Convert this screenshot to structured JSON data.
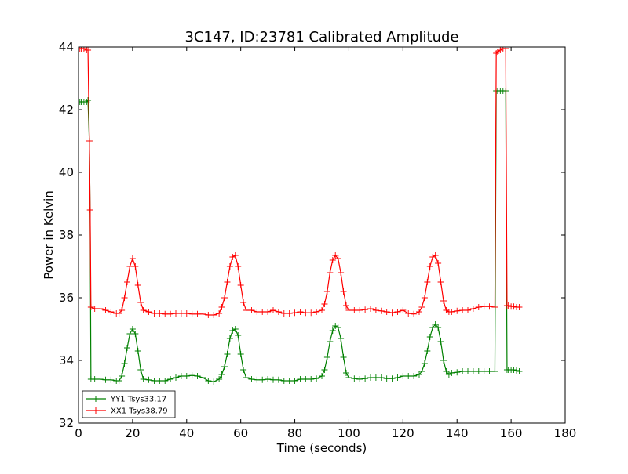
{
  "chart_data": {
    "type": "line",
    "title": "3C147, ID:23781 Calibrated Amplitude",
    "xlabel": "Time (seconds)",
    "ylabel": "Power in Kelvin",
    "xlim": [
      0,
      180
    ],
    "ylim": [
      32,
      44
    ],
    "xticks": [
      0,
      20,
      40,
      60,
      80,
      100,
      120,
      140,
      160,
      180
    ],
    "yticks": [
      32,
      34,
      36,
      38,
      40,
      42,
      44
    ],
    "grid": false,
    "legend_position": "lower-left",
    "marker": "plus",
    "series": [
      {
        "name": "YY1 Tsys33.17",
        "color": "#008000",
        "points": [
          [
            0.5,
            42.25
          ],
          [
            1,
            42.25
          ],
          [
            2,
            42.25
          ],
          [
            3,
            42.25
          ],
          [
            3.5,
            42.3
          ],
          [
            4,
            41.0
          ],
          [
            4.3,
            38.8
          ],
          [
            4.6,
            33.4
          ],
          [
            6,
            33.4
          ],
          [
            8,
            33.4
          ],
          [
            10,
            33.38
          ],
          [
            12,
            33.38
          ],
          [
            14,
            33.35
          ],
          [
            15,
            33.35
          ],
          [
            16,
            33.5
          ],
          [
            17,
            33.9
          ],
          [
            18,
            34.4
          ],
          [
            19,
            34.85
          ],
          [
            20,
            35.0
          ],
          [
            21,
            34.85
          ],
          [
            22,
            34.3
          ],
          [
            23,
            33.7
          ],
          [
            24,
            33.4
          ],
          [
            26,
            33.38
          ],
          [
            28,
            33.35
          ],
          [
            30,
            33.35
          ],
          [
            32,
            33.35
          ],
          [
            34,
            33.4
          ],
          [
            36,
            33.45
          ],
          [
            38,
            33.5
          ],
          [
            40,
            33.5
          ],
          [
            42,
            33.52
          ],
          [
            44,
            33.5
          ],
          [
            46,
            33.45
          ],
          [
            48,
            33.35
          ],
          [
            50,
            33.32
          ],
          [
            52,
            33.4
          ],
          [
            53,
            33.55
          ],
          [
            54,
            33.8
          ],
          [
            55,
            34.2
          ],
          [
            56,
            34.7
          ],
          [
            57,
            34.95
          ],
          [
            58,
            35.0
          ],
          [
            59,
            34.8
          ],
          [
            60,
            34.2
          ],
          [
            61,
            33.7
          ],
          [
            62,
            33.45
          ],
          [
            64,
            33.4
          ],
          [
            66,
            33.38
          ],
          [
            68,
            33.38
          ],
          [
            70,
            33.4
          ],
          [
            72,
            33.38
          ],
          [
            74,
            33.38
          ],
          [
            76,
            33.35
          ],
          [
            78,
            33.35
          ],
          [
            80,
            33.35
          ],
          [
            82,
            33.4
          ],
          [
            84,
            33.4
          ],
          [
            86,
            33.4
          ],
          [
            88,
            33.42
          ],
          [
            90,
            33.5
          ],
          [
            91,
            33.7
          ],
          [
            92,
            34.1
          ],
          [
            93,
            34.6
          ],
          [
            94,
            34.95
          ],
          [
            95,
            35.1
          ],
          [
            96,
            35.05
          ],
          [
            97,
            34.7
          ],
          [
            98,
            34.1
          ],
          [
            99,
            33.6
          ],
          [
            100,
            33.45
          ],
          [
            102,
            33.42
          ],
          [
            104,
            33.4
          ],
          [
            106,
            33.42
          ],
          [
            108,
            33.45
          ],
          [
            110,
            33.45
          ],
          [
            112,
            33.45
          ],
          [
            114,
            33.42
          ],
          [
            116,
            33.42
          ],
          [
            118,
            33.45
          ],
          [
            120,
            33.5
          ],
          [
            122,
            33.5
          ],
          [
            124,
            33.5
          ],
          [
            126,
            33.55
          ],
          [
            127,
            33.65
          ],
          [
            128,
            33.9
          ],
          [
            129,
            34.3
          ],
          [
            130,
            34.75
          ],
          [
            131,
            35.05
          ],
          [
            132,
            35.15
          ],
          [
            133,
            35.05
          ],
          [
            134,
            34.6
          ],
          [
            135,
            34.0
          ],
          [
            136,
            33.65
          ],
          [
            137,
            33.55
          ],
          [
            138,
            33.6
          ],
          [
            140,
            33.62
          ],
          [
            142,
            33.65
          ],
          [
            144,
            33.65
          ],
          [
            146,
            33.65
          ],
          [
            148,
            33.65
          ],
          [
            150,
            33.65
          ],
          [
            152,
            33.65
          ],
          [
            154,
            33.65
          ],
          [
            154.5,
            42.6
          ],
          [
            155,
            42.6
          ],
          [
            156,
            42.6
          ],
          [
            157,
            42.6
          ],
          [
            158,
            42.6
          ],
          [
            158.5,
            33.7
          ],
          [
            159,
            33.7
          ],
          [
            160,
            33.7
          ],
          [
            161,
            33.7
          ],
          [
            162,
            33.68
          ],
          [
            163,
            33.65
          ]
        ]
      },
      {
        "name": "XX1 Tsys38.79",
        "color": "#ff0000",
        "points": [
          [
            0.5,
            43.95
          ],
          [
            1,
            43.95
          ],
          [
            2,
            43.95
          ],
          [
            3,
            43.9
          ],
          [
            3.5,
            43.9
          ],
          [
            4,
            41.0
          ],
          [
            4.3,
            38.8
          ],
          [
            4.6,
            35.7
          ],
          [
            6,
            35.65
          ],
          [
            8,
            35.65
          ],
          [
            10,
            35.6
          ],
          [
            12,
            35.55
          ],
          [
            14,
            35.5
          ],
          [
            15,
            35.5
          ],
          [
            16,
            35.6
          ],
          [
            17,
            36.0
          ],
          [
            18,
            36.5
          ],
          [
            19,
            37.0
          ],
          [
            20,
            37.25
          ],
          [
            21,
            37.0
          ],
          [
            22,
            36.4
          ],
          [
            23,
            35.85
          ],
          [
            24,
            35.6
          ],
          [
            26,
            35.55
          ],
          [
            28,
            35.5
          ],
          [
            30,
            35.5
          ],
          [
            32,
            35.48
          ],
          [
            34,
            35.48
          ],
          [
            36,
            35.5
          ],
          [
            38,
            35.5
          ],
          [
            40,
            35.5
          ],
          [
            42,
            35.48
          ],
          [
            44,
            35.48
          ],
          [
            46,
            35.48
          ],
          [
            48,
            35.45
          ],
          [
            50,
            35.45
          ],
          [
            52,
            35.5
          ],
          [
            53,
            35.7
          ],
          [
            54,
            36.0
          ],
          [
            55,
            36.5
          ],
          [
            56,
            37.0
          ],
          [
            57,
            37.3
          ],
          [
            58,
            37.35
          ],
          [
            59,
            37.0
          ],
          [
            60,
            36.4
          ],
          [
            61,
            35.85
          ],
          [
            62,
            35.6
          ],
          [
            64,
            35.6
          ],
          [
            66,
            35.55
          ],
          [
            68,
            35.55
          ],
          [
            70,
            35.55
          ],
          [
            72,
            35.6
          ],
          [
            74,
            35.55
          ],
          [
            76,
            35.5
          ],
          [
            78,
            35.5
          ],
          [
            80,
            35.52
          ],
          [
            82,
            35.55
          ],
          [
            84,
            35.52
          ],
          [
            86,
            35.52
          ],
          [
            88,
            35.55
          ],
          [
            90,
            35.6
          ],
          [
            91,
            35.8
          ],
          [
            92,
            36.2
          ],
          [
            93,
            36.8
          ],
          [
            94,
            37.2
          ],
          [
            95,
            37.35
          ],
          [
            96,
            37.25
          ],
          [
            97,
            36.8
          ],
          [
            98,
            36.2
          ],
          [
            99,
            35.75
          ],
          [
            100,
            35.6
          ],
          [
            102,
            35.6
          ],
          [
            104,
            35.6
          ],
          [
            106,
            35.62
          ],
          [
            108,
            35.65
          ],
          [
            110,
            35.6
          ],
          [
            112,
            35.58
          ],
          [
            114,
            35.55
          ],
          [
            116,
            35.52
          ],
          [
            118,
            35.55
          ],
          [
            120,
            35.6
          ],
          [
            122,
            35.5
          ],
          [
            124,
            35.48
          ],
          [
            126,
            35.55
          ],
          [
            127,
            35.7
          ],
          [
            128,
            36.0
          ],
          [
            129,
            36.5
          ],
          [
            130,
            37.0
          ],
          [
            131,
            37.3
          ],
          [
            132,
            37.35
          ],
          [
            133,
            37.1
          ],
          [
            134,
            36.5
          ],
          [
            135,
            35.9
          ],
          [
            136,
            35.6
          ],
          [
            137,
            35.55
          ],
          [
            138,
            35.55
          ],
          [
            140,
            35.58
          ],
          [
            142,
            35.6
          ],
          [
            144,
            35.6
          ],
          [
            146,
            35.65
          ],
          [
            148,
            35.7
          ],
          [
            150,
            35.72
          ],
          [
            152,
            35.72
          ],
          [
            154,
            35.7
          ],
          [
            154.5,
            43.8
          ],
          [
            155,
            43.85
          ],
          [
            156,
            43.9
          ],
          [
            157,
            43.95
          ],
          [
            158,
            43.95
          ],
          [
            158.5,
            35.75
          ],
          [
            159,
            35.75
          ],
          [
            160,
            35.72
          ],
          [
            161,
            35.72
          ],
          [
            162,
            35.7
          ],
          [
            163,
            35.7
          ]
        ]
      }
    ]
  }
}
